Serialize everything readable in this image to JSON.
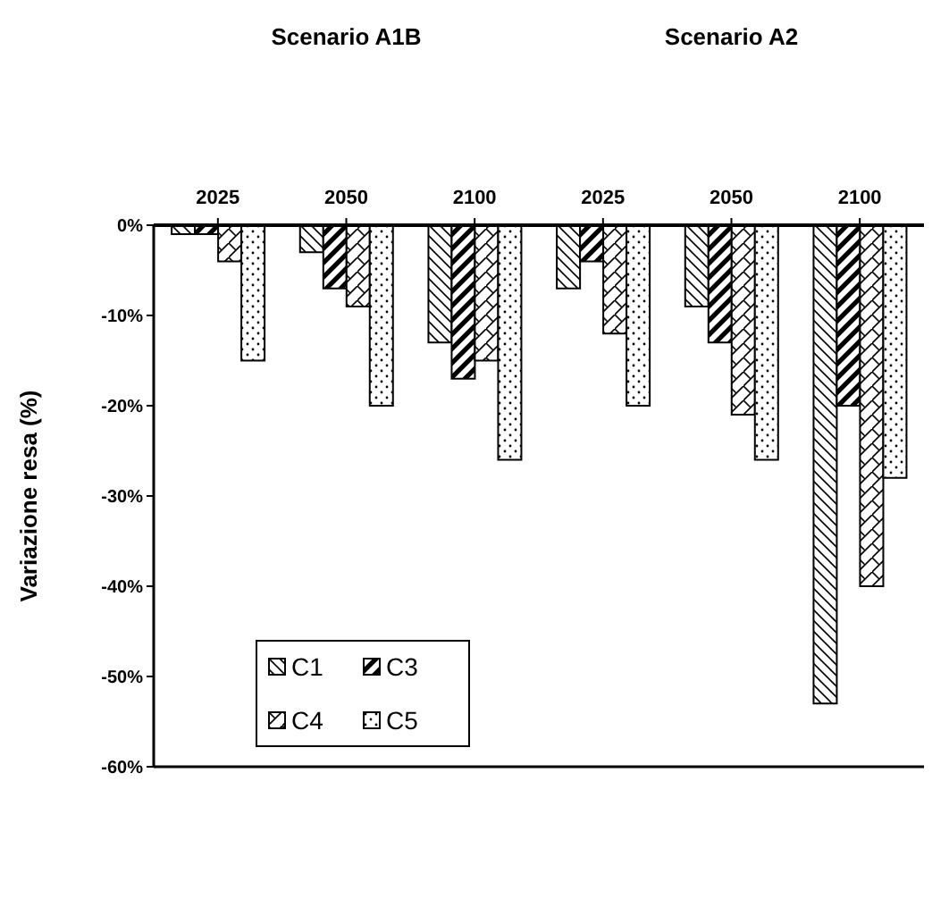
{
  "chart_data": {
    "type": "bar",
    "ylabel": "Variazione resa (%)",
    "categories": [
      "2025",
      "2050",
      "2100",
      "2025",
      "2050",
      "2100"
    ],
    "series": [
      {
        "name": "C1",
        "color": "#000000",
        "values": [
          -1,
          -3,
          -13,
          -7,
          -9,
          -53
        ]
      },
      {
        "name": "C3",
        "color": "#000000",
        "values": [
          -1,
          -7,
          -17,
          -4,
          -13,
          -20
        ]
      },
      {
        "name": "C4",
        "color": "#000000",
        "values": [
          -4,
          -9,
          -15,
          -12,
          -21,
          -40
        ]
      },
      {
        "name": "C5",
        "color": "#000000",
        "values": [
          -15,
          -20,
          -26,
          -20,
          -26,
          -28
        ]
      }
    ],
    "ylim": [
      -60,
      0
    ],
    "yticks": [
      {
        "value": -60,
        "label": "-60%"
      },
      {
        "value": -50,
        "label": "-50%"
      },
      {
        "value": -40,
        "label": "-40%"
      },
      {
        "value": -30,
        "label": "-30%"
      },
      {
        "value": -20,
        "label": "-20%"
      },
      {
        "value": -10,
        "label": "-10%"
      },
      {
        "value": 0,
        "label": "0%"
      }
    ],
    "annotations": [
      "Scenario A1B",
      "Scenario A2"
    ],
    "legend": "bottom left",
    "grid": false
  }
}
